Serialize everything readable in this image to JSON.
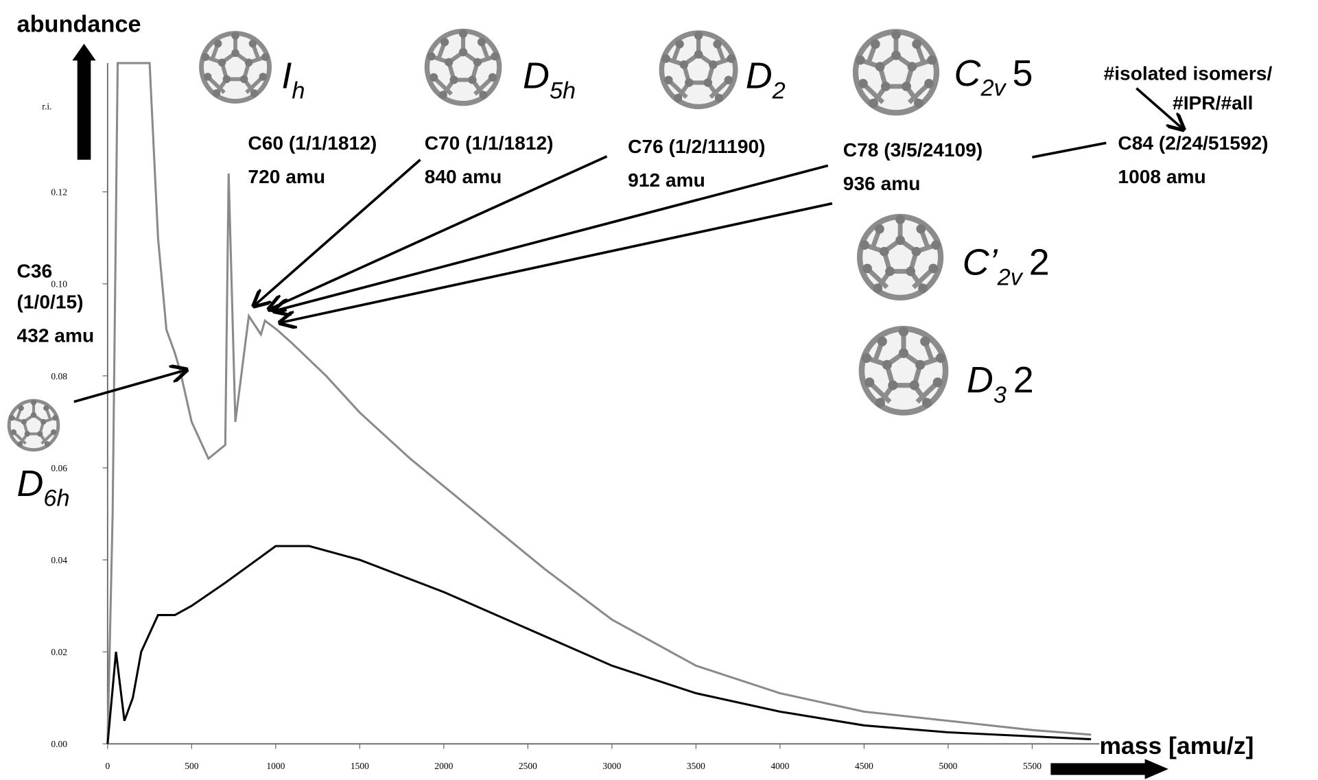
{
  "chart_data": {
    "type": "line",
    "ylabel": "abundance",
    "xlabel": "mass [amu/z]",
    "y_unit": "r.i.",
    "xlim": [
      0,
      5900
    ],
    "ylim": [
      0,
      0.148
    ],
    "xticks": [
      0,
      500,
      1000,
      1500,
      2000,
      2500,
      3000,
      3500,
      4000,
      4500,
      5000,
      5500
    ],
    "yticks": [
      {
        "value": 0,
        "label": "0.00"
      },
      {
        "value": 0.02,
        "label": "0.02"
      },
      {
        "value": 0.04,
        "label": "0.04"
      },
      {
        "value": 0.06,
        "label": "0.06"
      },
      {
        "value": 0.08,
        "label": "0.08"
      },
      {
        "value": 0.1,
        "label": "0.10"
      },
      {
        "value": 0.12,
        "label": "0.12"
      }
    ],
    "grid": false,
    "series": [
      {
        "color": "#8a8a8a",
        "x": [
          0,
          30,
          60,
          100,
          150,
          200,
          250,
          300,
          350,
          400,
          432,
          500,
          600,
          700,
          720,
          760,
          840,
          912,
          936,
          1008,
          1100,
          1300,
          1500,
          1800,
          2000,
          2300,
          2600,
          3000,
          3500,
          4000,
          4500,
          5000,
          5500,
          5850
        ],
        "values": [
          0,
          0.05,
          0.148,
          0.148,
          0.148,
          0.148,
          0.148,
          0.11,
          0.09,
          0.085,
          0.081,
          0.07,
          0.062,
          0.065,
          0.124,
          0.07,
          0.093,
          0.089,
          0.092,
          0.09,
          0.087,
          0.08,
          0.072,
          0.062,
          0.056,
          0.047,
          0.038,
          0.027,
          0.017,
          0.011,
          0.007,
          0.005,
          0.003,
          0.002
        ]
      },
      {
        "color": "#000000",
        "x": [
          0,
          50,
          100,
          150,
          200,
          300,
          400,
          500,
          700,
          1000,
          1200,
          1500,
          2000,
          2500,
          3000,
          3500,
          4000,
          4500,
          5000,
          5850
        ],
        "values": [
          0,
          0.02,
          0.005,
          0.01,
          0.02,
          0.028,
          0.028,
          0.03,
          0.035,
          0.043,
          0.043,
          0.04,
          0.033,
          0.025,
          0.017,
          0.011,
          0.007,
          0.004,
          0.0025,
          0.001
        ]
      }
    ],
    "molecules": [
      {
        "lines": [
          "C36",
          "(1/0/15)",
          "432 amu"
        ],
        "symmetry": {
          "main": "D",
          "sub": "6h"
        }
      },
      {
        "lines": [
          "C60 (1/1/1812)",
          "720 amu"
        ],
        "symmetry": {
          "main": "I",
          "sub": "h"
        }
      },
      {
        "lines": [
          "C70 (1/1/1812)",
          "840 amu"
        ],
        "symmetry": {
          "main": "D",
          "sub": "5h"
        }
      },
      {
        "lines": [
          "C76 (1/2/11190)",
          "912 amu"
        ],
        "symmetry": {
          "main": "D",
          "sub": "2"
        }
      },
      {
        "lines": [
          "C78 (3/5/24109)",
          "936 amu"
        ],
        "symmetry": {
          "main": "C",
          "sub": "2v",
          "count": "5"
        }
      },
      {
        "lines": [
          "C84 (2/24/51592)",
          "1008 amu"
        ]
      }
    ],
    "extra_isomers": [
      {
        "main": "C’",
        "sub": "2v",
        "count": "2"
      },
      {
        "main": "D",
        "sub": "3",
        "count": "2"
      }
    ],
    "note": [
      "#isolated isomers/",
      "#IPR/#all"
    ]
  }
}
